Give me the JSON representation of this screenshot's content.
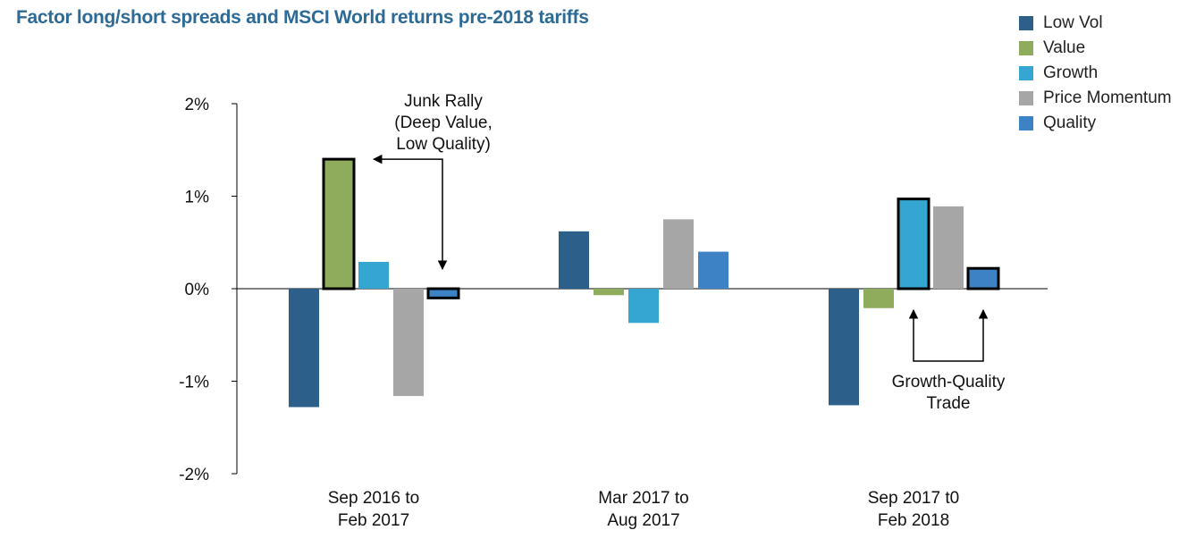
{
  "chart_data": {
    "type": "bar",
    "title": "Factor long/short spreads and MSCI World returns pre-2018 tariffs",
    "xlabel": "",
    "ylabel": "",
    "ylim": [
      -2,
      2
    ],
    "yticks": [
      {
        "value": 2,
        "label": "2%"
      },
      {
        "value": 1,
        "label": "1%"
      },
      {
        "value": 0,
        "label": "0%"
      },
      {
        "value": -1,
        "label": "-1%"
      },
      {
        "value": -2,
        "label": "-2%"
      }
    ],
    "categories": [
      [
        "Sep 2016 to",
        "Feb 2017"
      ],
      [
        "Mar 2017 to",
        "Aug 2017"
      ],
      [
        "Sep 2017 t0",
        "Feb 2018"
      ]
    ],
    "series": [
      {
        "name": "Low Vol",
        "color": "#2c5f8a",
        "values": [
          -1.28,
          0.62,
          -1.26
        ]
      },
      {
        "name": "Value",
        "color": "#8eac5c",
        "values": [
          1.4,
          -0.07,
          -0.21
        ]
      },
      {
        "name": "Growth",
        "color": "#35a6d1",
        "values": [
          0.29,
          -0.37,
          0.97
        ]
      },
      {
        "name": "Price Momentum",
        "color": "#a6a6a6",
        "values": [
          -1.16,
          0.75,
          0.89
        ]
      },
      {
        "name": "Quality",
        "color": "#3c82c4",
        "values": [
          -0.1,
          0.4,
          0.22
        ]
      }
    ],
    "highlighted": [
      {
        "category": 0,
        "series": 1
      },
      {
        "category": 0,
        "series": 4
      },
      {
        "category": 2,
        "series": 2
      },
      {
        "category": 2,
        "series": 4
      }
    ],
    "legend": "top-right",
    "grid": false,
    "annotations": [
      {
        "id": "junk",
        "lines": [
          "Junk Rally",
          "(Deep Value,",
          "Low Quality)"
        ]
      },
      {
        "id": "growth-quality",
        "lines": [
          "Growth-Quality",
          "Trade"
        ]
      }
    ]
  }
}
